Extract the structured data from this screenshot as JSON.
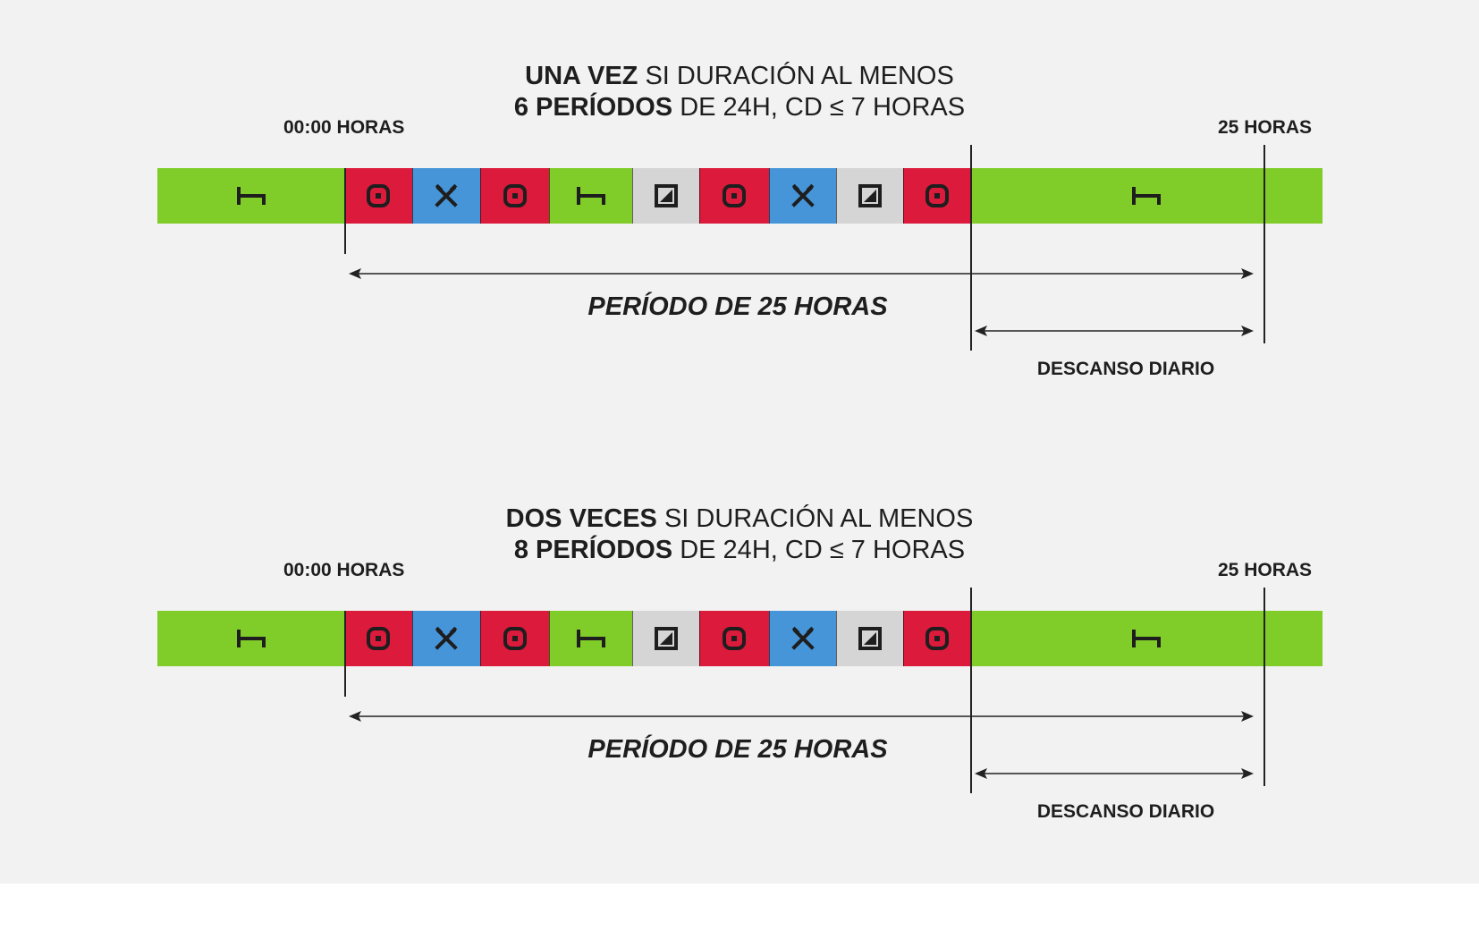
{
  "diagrams": [
    {
      "title_bold_1": "UNA VEZ",
      "title_rest_1": " SI DURACIÓN AL MENOS",
      "title_bold_2": "6 PERÍODOS",
      "title_rest_2": " DE 24H, CD ≤ 7 HORAS",
      "start_label": "00:00 HORAS",
      "end_label": "25 HORAS",
      "period_label": "PERÍODO DE 25 HORAS",
      "rest_label": "DESCANSO DIARIO"
    },
    {
      "title_bold_1": "DOS VECES",
      "title_rest_1": " SI DURACIÓN AL MENOS",
      "title_bold_2": "8 PERÍODOS",
      "title_rest_2": " DE 24H, CD ≤ 7 HORAS",
      "start_label": "00:00 HORAS",
      "end_label": "25 HORAS",
      "period_label": "PERÍODO DE 25 HORAS",
      "rest_label": "DESCANSO DIARIO"
    }
  ],
  "activity_sequence": [
    "rest",
    "drive",
    "work",
    "drive",
    "rest",
    "availability",
    "drive",
    "work",
    "availability",
    "drive",
    "rest"
  ],
  "activities": {
    "rest": {
      "color": "#80cc28",
      "icon": "bed-icon"
    },
    "drive": {
      "color": "#dc1a3c",
      "icon": "steering-wheel-icon"
    },
    "work": {
      "color": "#4695d9",
      "icon": "crossed-hammers-icon"
    },
    "availability": {
      "color": "#d5d5d5",
      "icon": "availability-box-icon"
    }
  }
}
